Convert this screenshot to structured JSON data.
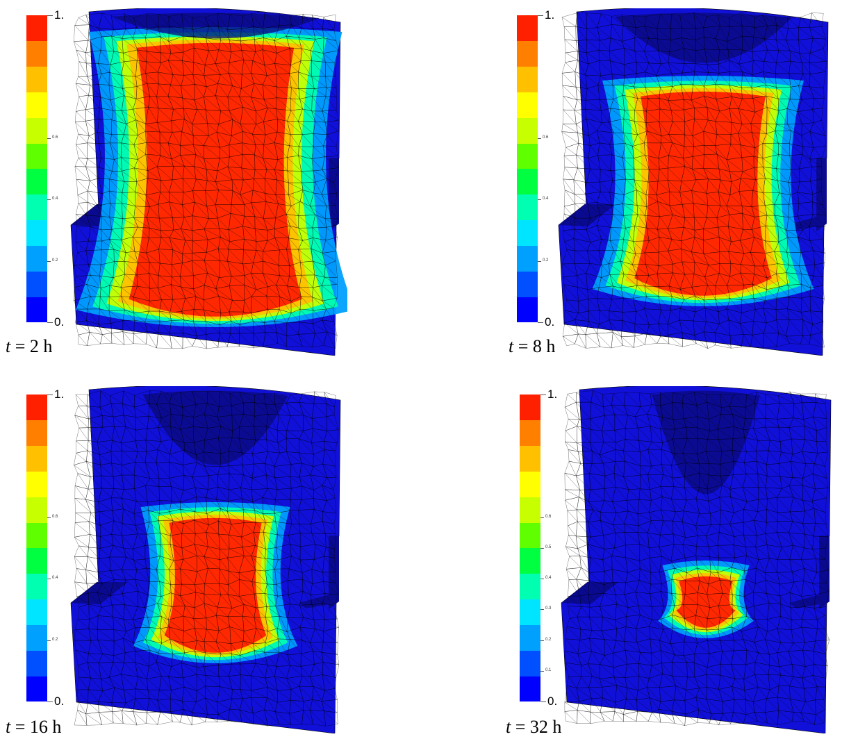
{
  "panels": [
    {
      "id": "p2h",
      "caption": {
        "var": "t",
        "rest": " = 2 h"
      },
      "pool_level": 0.95,
      "colorbar": {
        "max_label": "1.",
        "min_label": "0.",
        "ticks": [
          "0.6",
          "0.4",
          "0.2"
        ]
      }
    },
    {
      "id": "p8h",
      "caption": {
        "var": "t",
        "rest": " = 8 h"
      },
      "pool_level": 0.7,
      "colorbar": {
        "max_label": "1.",
        "min_label": "0.",
        "ticks": [
          "0.6",
          "0.4",
          "0.2"
        ]
      }
    },
    {
      "id": "p16h",
      "caption": {
        "var": "t",
        "rest": " = 16 h"
      },
      "pool_level": 0.45,
      "colorbar": {
        "max_label": "1.",
        "min_label": "0.",
        "ticks": [
          "0.6",
          "0.4",
          "0.2"
        ]
      }
    },
    {
      "id": "p32h",
      "caption": {
        "var": "t",
        "rest": " = 32 h"
      },
      "pool_level": 0.15,
      "colorbar": {
        "max_label": "1.",
        "min_label": "0.",
        "ticks": [
          "0.6",
          "0.5",
          "0.4",
          "0.3",
          "0.2",
          "0.1"
        ]
      }
    }
  ],
  "colors": {
    "scale": [
      "#0000ff",
      "#0050ff",
      "#00a0ff",
      "#00e5ff",
      "#00ffb0",
      "#00ff40",
      "#60ff00",
      "#c8ff00",
      "#ffff00",
      "#ffc000",
      "#ff8000",
      "#ff2000"
    ],
    "mold": "#1010d8",
    "mold_dark": "#0a0a90",
    "mesh": "#000000"
  }
}
